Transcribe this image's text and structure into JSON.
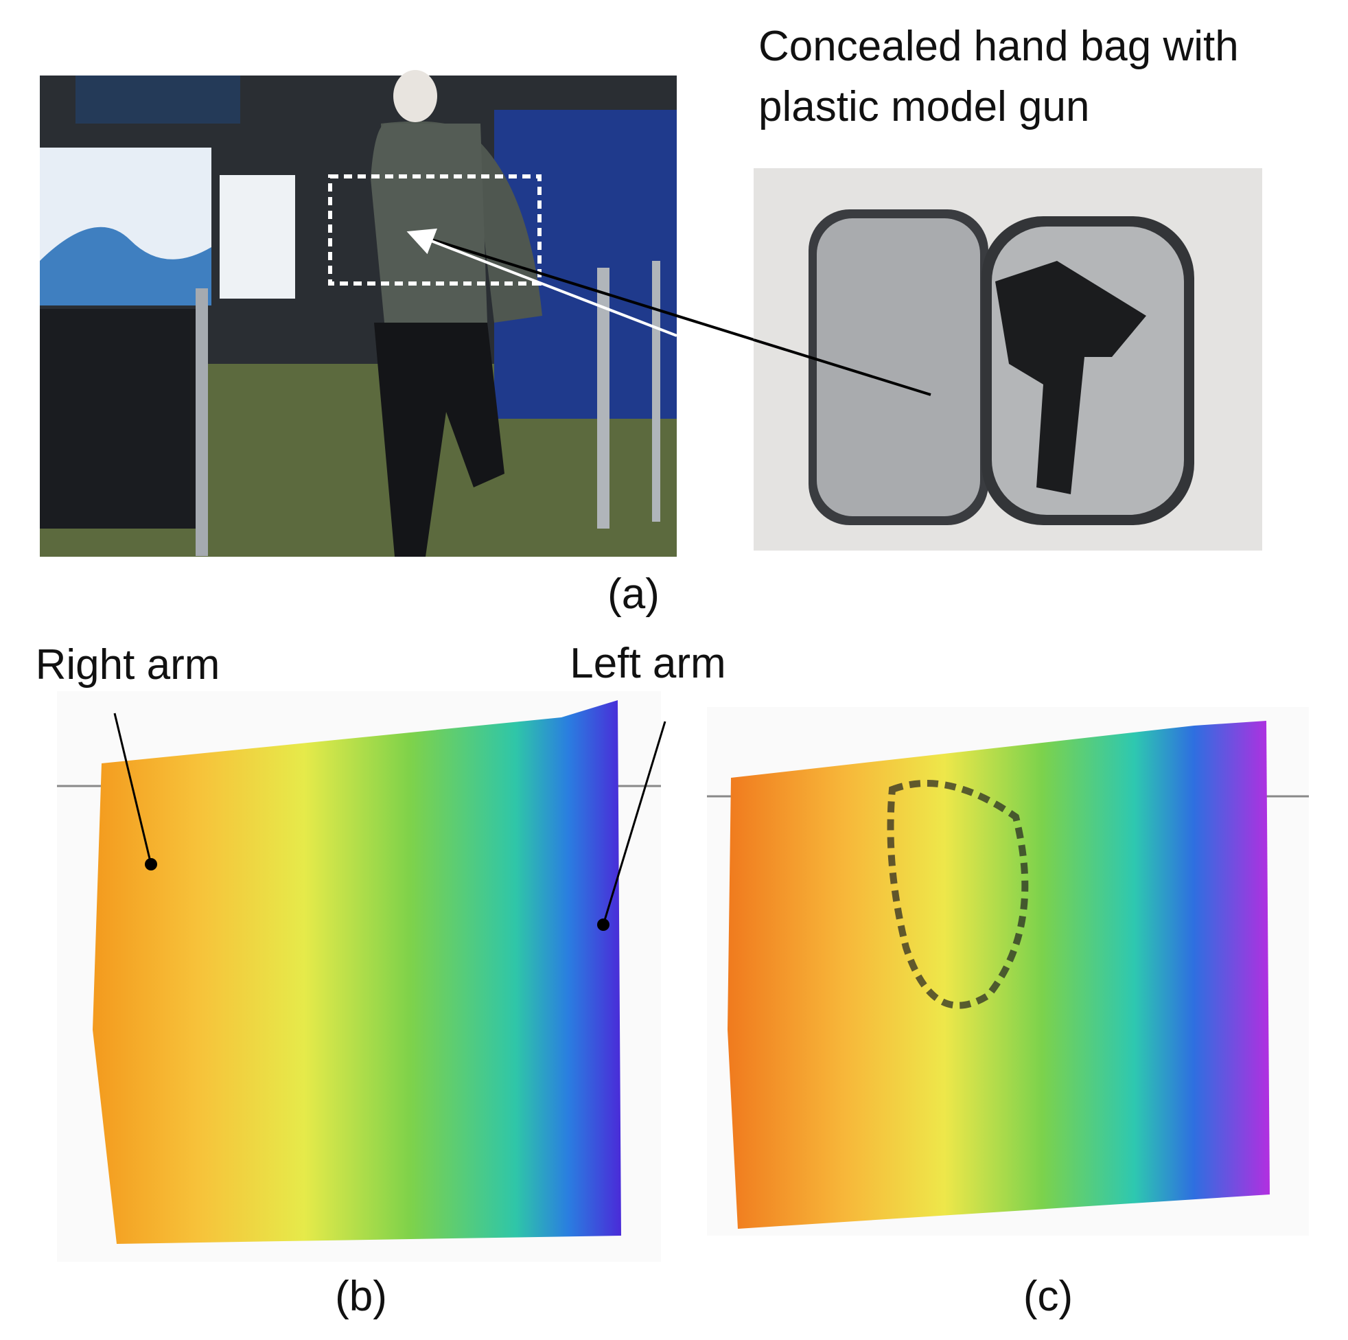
{
  "panel_a": {
    "annotation": [
      "Concealed hand bag with",
      "plastic model gun"
    ],
    "caption": "(a)"
  },
  "panel_b": {
    "labels": [
      "Right arm",
      "Left arm"
    ],
    "caption": "(b)"
  },
  "panel_c": {
    "caption": "(c)"
  }
}
